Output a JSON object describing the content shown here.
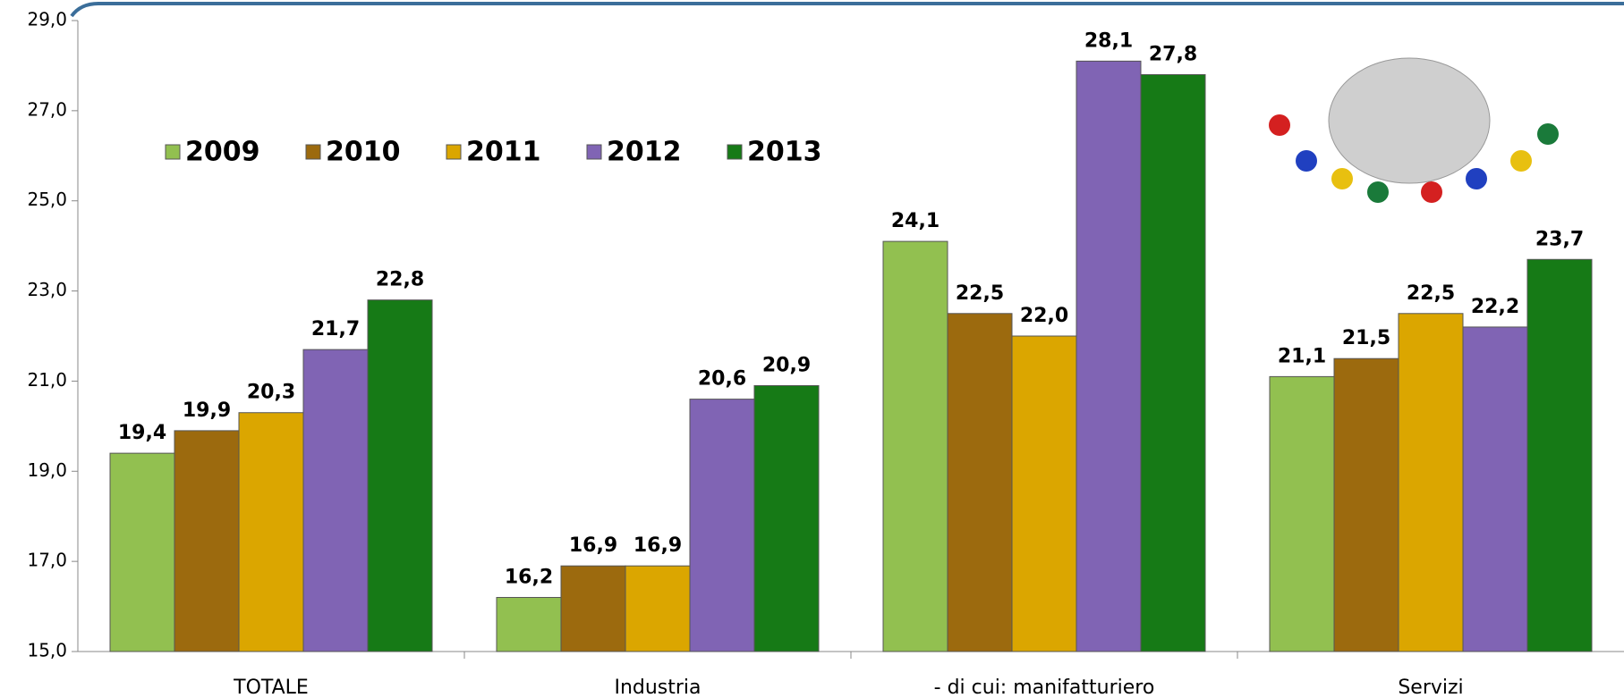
{
  "chart_data": {
    "type": "bar",
    "categories": [
      "TOTALE",
      "Industria",
      "- di cui: manifatturiero",
      "Servizi"
    ],
    "series": [
      {
        "name": "2009",
        "color": "#92c050",
        "values": [
          19.4,
          16.2,
          24.1,
          21.1
        ],
        "value_labels": [
          "19,4",
          "16,2",
          "24,1",
          "21,1"
        ]
      },
      {
        "name": "2010",
        "color": "#9c6a0e",
        "values": [
          19.9,
          16.9,
          22.5,
          21.5
        ],
        "value_labels": [
          "19,9",
          "16,9",
          "22,5",
          "21,5"
        ]
      },
      {
        "name": "2011",
        "color": "#dba600",
        "values": [
          20.3,
          16.9,
          22.0,
          22.5
        ],
        "value_labels": [
          "20,3",
          "16,9",
          "22,0",
          "22,5"
        ]
      },
      {
        "name": "2012",
        "color": "#8064b4",
        "values": [
          21.7,
          20.6,
          28.1,
          22.2
        ],
        "value_labels": [
          "21,7",
          "20,6",
          "28,1",
          "22,2"
        ]
      },
      {
        "name": "2013",
        "color": "#167a16",
        "values": [
          22.8,
          20.9,
          27.8,
          23.7
        ],
        "value_labels": [
          "22,8",
          "20,9",
          "27,8",
          "23,7"
        ]
      }
    ],
    "ylim": [
      15,
      29
    ],
    "yticks": [
      {
        "value": 15,
        "label": "15,0"
      },
      {
        "value": 17,
        "label": "17,0"
      },
      {
        "value": 19,
        "label": "19,0"
      },
      {
        "value": 21,
        "label": "21,0"
      },
      {
        "value": 23,
        "label": "23,0"
      },
      {
        "value": 25,
        "label": "25,0"
      },
      {
        "value": 27,
        "label": "27,0"
      },
      {
        "value": 29,
        "label": "29,0"
      }
    ],
    "grid": false,
    "legend": "top-left"
  }
}
